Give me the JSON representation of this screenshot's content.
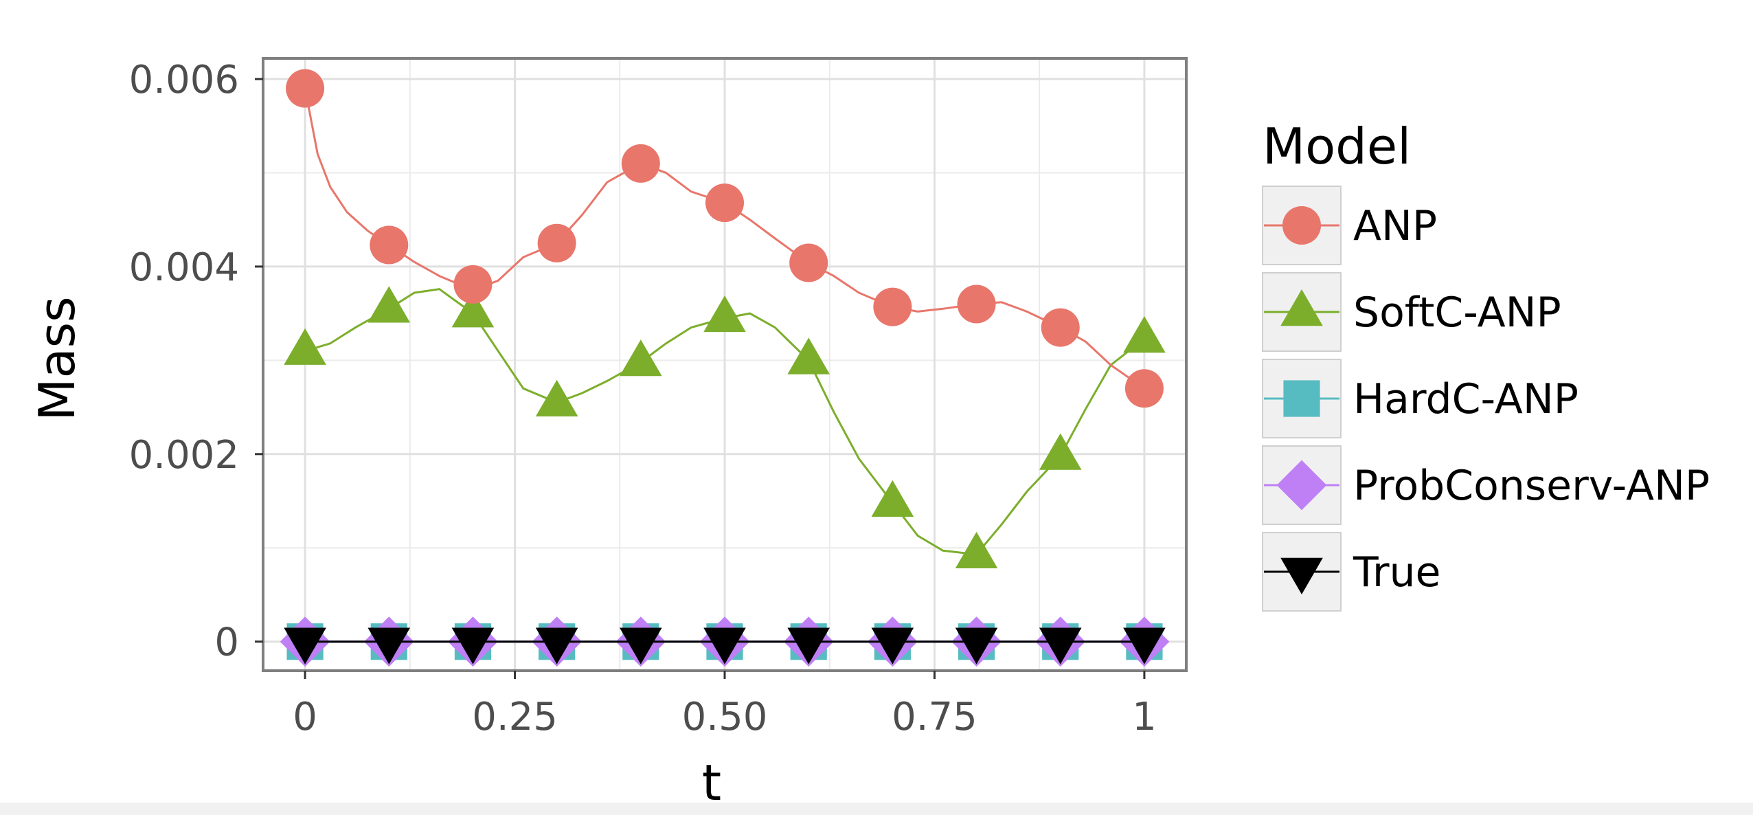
{
  "chart_data": {
    "type": "line",
    "xlabel": "t",
    "ylabel": "Mass",
    "xlim": [
      -0.05,
      1.05
    ],
    "ylim": [
      -0.00031,
      0.00622
    ],
    "x_ticks": [
      0,
      0.25,
      0.5,
      0.75,
      1
    ],
    "x_tick_labels": [
      "0",
      "0.25",
      "0.50",
      "0.75",
      "1"
    ],
    "y_ticks": [
      0,
      0.002,
      0.004,
      0.006
    ],
    "y_tick_labels": [
      "0",
      "0.002",
      "0.004",
      "0.006"
    ],
    "grid": true,
    "legend_title": "Model",
    "legend_position": "right",
    "x": [
      0,
      0.1,
      0.2,
      0.3,
      0.4,
      0.5,
      0.6,
      0.7,
      0.8,
      0.9,
      1.0
    ],
    "series": [
      {
        "name": "ANP",
        "color": "#E8766B",
        "marker": "circle",
        "values": [
          0.0059,
          0.00423,
          0.00381,
          0.00425,
          0.0051,
          0.00468,
          0.00404,
          0.00357,
          0.0036,
          0.00335,
          0.0027
        ],
        "curve_x": [
          0,
          0.015,
          0.03,
          0.05,
          0.075,
          0.1,
          0.13,
          0.16,
          0.2,
          0.23,
          0.26,
          0.3,
          0.33,
          0.36,
          0.4,
          0.43,
          0.46,
          0.5,
          0.53,
          0.56,
          0.6,
          0.63,
          0.66,
          0.7,
          0.73,
          0.76,
          0.8,
          0.83,
          0.86,
          0.9,
          0.93,
          0.96,
          1.0
        ],
        "curve_y": [
          0.0059,
          0.0052,
          0.00485,
          0.00458,
          0.00438,
          0.00423,
          0.00405,
          0.0039,
          0.00375,
          0.00385,
          0.0041,
          0.00425,
          0.00455,
          0.0049,
          0.0051,
          0.005,
          0.0048,
          0.00468,
          0.0045,
          0.0043,
          0.00404,
          0.0039,
          0.00372,
          0.00357,
          0.00352,
          0.00355,
          0.0036,
          0.00362,
          0.00352,
          0.00335,
          0.0032,
          0.00295,
          0.0027
        ]
      },
      {
        "name": "SoftC-ANP",
        "color": "#7CAE2C",
        "marker": "triangle-up",
        "values": [
          0.0031,
          0.00355,
          0.0035,
          0.00255,
          0.00298,
          0.00345,
          0.003,
          0.00148,
          0.00093,
          0.00198,
          0.00323
        ],
        "curve_x": [
          0,
          0.03,
          0.06,
          0.1,
          0.13,
          0.16,
          0.2,
          0.23,
          0.26,
          0.3,
          0.33,
          0.36,
          0.4,
          0.43,
          0.46,
          0.5,
          0.53,
          0.56,
          0.6,
          0.63,
          0.66,
          0.7,
          0.73,
          0.76,
          0.8,
          0.83,
          0.86,
          0.9,
          0.93,
          0.96,
          1.0
        ],
        "curve_y": [
          0.0031,
          0.00318,
          0.00335,
          0.00355,
          0.00372,
          0.00376,
          0.0035,
          0.0031,
          0.0027,
          0.00255,
          0.00265,
          0.00278,
          0.00298,
          0.00318,
          0.00335,
          0.00345,
          0.0035,
          0.00335,
          0.003,
          0.00245,
          0.00195,
          0.00148,
          0.00113,
          0.00097,
          0.00093,
          0.00125,
          0.0016,
          0.00198,
          0.00248,
          0.00295,
          0.00323
        ]
      },
      {
        "name": "HardC-ANP",
        "color": "#56BCC2",
        "marker": "square",
        "values": [
          0,
          0,
          0,
          0,
          0,
          0,
          0,
          0,
          0,
          0,
          0
        ]
      },
      {
        "name": "ProbConserv-ANP",
        "color": "#BE80F4",
        "marker": "diamond",
        "values": [
          0,
          0,
          0,
          0,
          0,
          0,
          0,
          0,
          0,
          0,
          0
        ]
      },
      {
        "name": "True",
        "color": "#000000",
        "marker": "triangle-down",
        "values": [
          0,
          0,
          0,
          0,
          0,
          0,
          0,
          0,
          0,
          0,
          0
        ]
      }
    ]
  }
}
